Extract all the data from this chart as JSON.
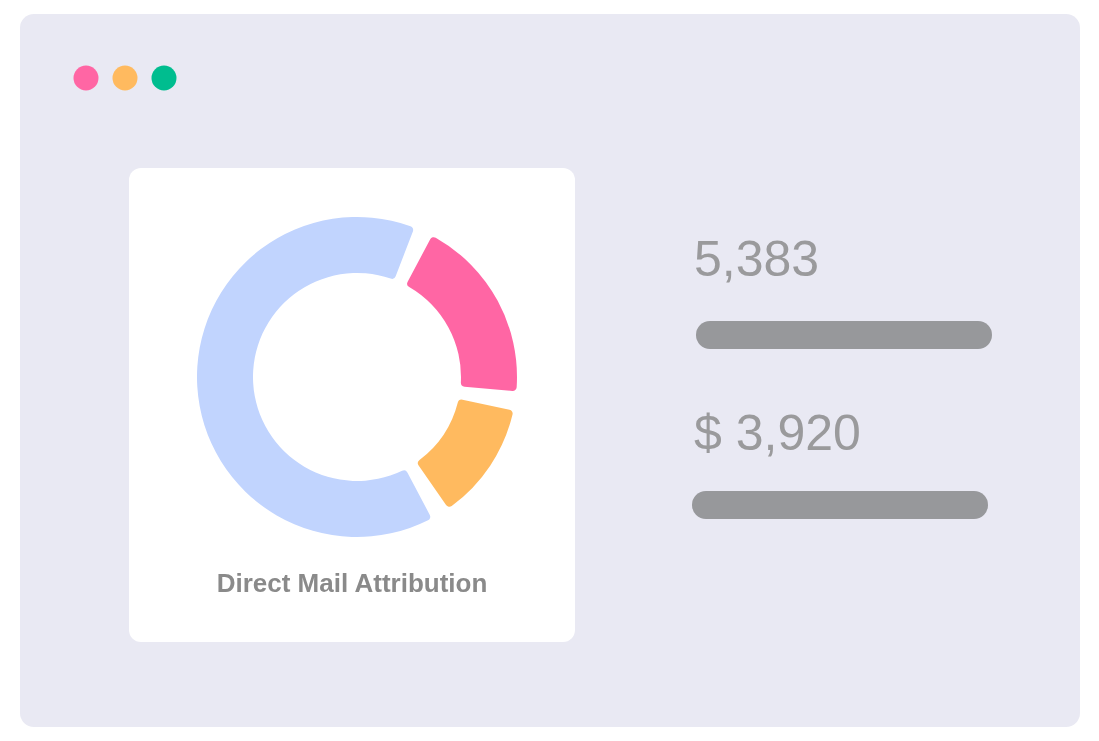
{
  "chart_data": [
    {
      "type": "donut",
      "title": "Direct Mail Attribution",
      "categories": [
        null,
        null,
        null
      ],
      "values": [
        19.8,
        12.7,
        67.5
      ],
      "colors": [
        "#ff66a4",
        "#ffba5f",
        "#c1d4fe"
      ]
    },
    {
      "type": "other",
      "annotations": [
        "5,383",
        "$ 3,920"
      ]
    }
  ]
}
